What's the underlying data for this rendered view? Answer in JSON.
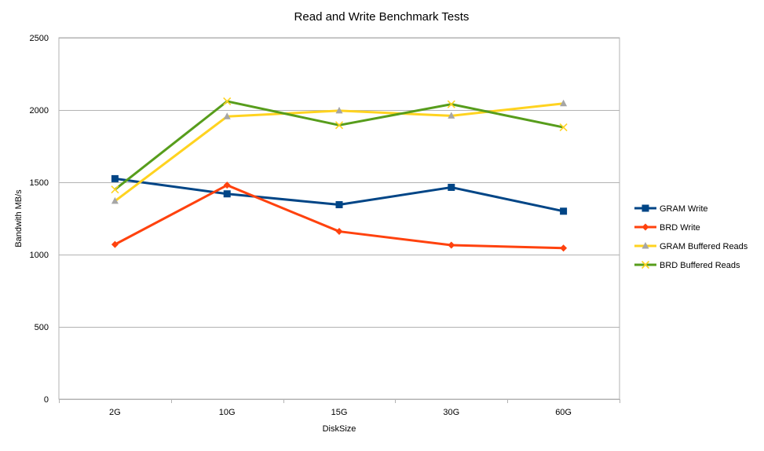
{
  "chart_data": {
    "type": "line",
    "title": "Read and Write Benchmark Tests",
    "xlabel": "DiskSize",
    "ylabel": "Bandwith MB/s",
    "categories": [
      "2G",
      "10G",
      "15G",
      "30G",
      "60G"
    ],
    "ylim": [
      0,
      2500
    ],
    "yticks": [
      0,
      500,
      1000,
      1500,
      2000,
      2500
    ],
    "grid": "horizontal",
    "legend_position": "right",
    "series": [
      {
        "name": "GRAM Write",
        "values": [
          1525,
          1420,
          1345,
          1465,
          1300
        ],
        "color": "#004586",
        "marker": "square"
      },
      {
        "name": "BRD Write",
        "values": [
          1070,
          1480,
          1160,
          1065,
          1045
        ],
        "color": "#ff420e",
        "marker": "diamond"
      },
      {
        "name": "GRAM Buffered Reads",
        "values": [
          1370,
          1955,
          1995,
          1960,
          2045
        ],
        "color": "#ffd320",
        "marker": "triangle",
        "marker_color": "#a6a6a6"
      },
      {
        "name": "BRD Buffered Reads",
        "values": [
          1450,
          2060,
          1895,
          2040,
          1880
        ],
        "color": "#579d1c",
        "marker": "x",
        "marker_color": "#ffd320"
      }
    ]
  }
}
